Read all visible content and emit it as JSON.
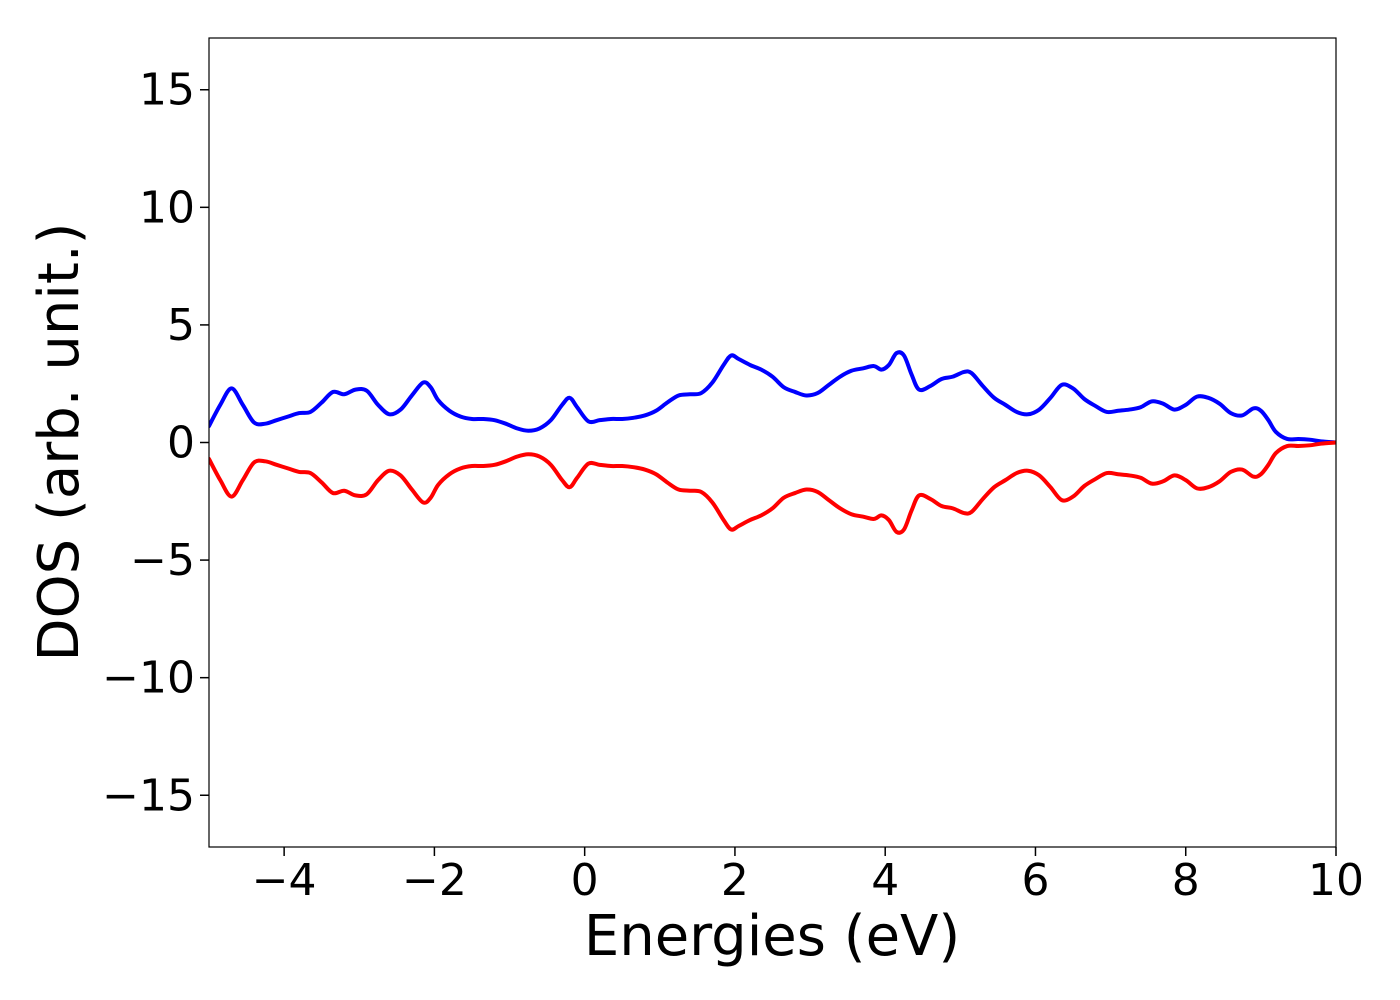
{
  "chart_data": {
    "type": "line",
    "xlabel": "Energies (eV)",
    "ylabel": "DOS (arb. unit.)",
    "xlim": [
      -5,
      10
    ],
    "ylim": [
      -17.2,
      17.2
    ],
    "x_ticks": [
      -4,
      -2,
      0,
      2,
      4,
      6,
      8,
      10
    ],
    "y_ticks": [
      -15,
      -10,
      -5,
      0,
      5,
      10,
      15
    ],
    "x_tick_labels": [
      "−4",
      "−2",
      "0",
      "2",
      "4",
      "6",
      "8",
      "10"
    ],
    "y_tick_labels": [
      "−15",
      "−10",
      "−5",
      "0",
      "5",
      "10",
      "15"
    ],
    "grid": false,
    "legend": "none",
    "series": [
      {
        "color": "#0000ff",
        "x": [
          -5.0,
          -4.85,
          -4.7,
          -4.55,
          -4.4,
          -4.25,
          -4.1,
          -3.95,
          -3.8,
          -3.65,
          -3.5,
          -3.35,
          -3.2,
          -3.05,
          -2.9,
          -2.75,
          -2.6,
          -2.45,
          -2.3,
          -2.15,
          -2.05,
          -1.95,
          -1.8,
          -1.65,
          -1.5,
          -1.35,
          -1.2,
          -1.05,
          -0.9,
          -0.75,
          -0.6,
          -0.45,
          -0.3,
          -0.2,
          -0.1,
          0.05,
          0.2,
          0.35,
          0.5,
          0.65,
          0.8,
          0.95,
          1.1,
          1.25,
          1.4,
          1.55,
          1.7,
          1.85,
          1.95,
          2.05,
          2.2,
          2.35,
          2.5,
          2.65,
          2.8,
          2.95,
          3.1,
          3.25,
          3.4,
          3.55,
          3.7,
          3.85,
          3.95,
          4.05,
          4.15,
          4.25,
          4.35,
          4.45,
          4.6,
          4.75,
          4.9,
          5.05,
          5.15,
          5.3,
          5.45,
          5.6,
          5.75,
          5.9,
          6.05,
          6.2,
          6.35,
          6.5,
          6.65,
          6.8,
          6.95,
          7.1,
          7.25,
          7.4,
          7.55,
          7.7,
          7.85,
          8.0,
          8.15,
          8.3,
          8.45,
          8.6,
          8.75,
          8.9,
          9.0,
          9.1,
          9.2,
          9.35,
          9.5,
          9.65,
          9.8,
          10.0
        ],
        "values": [
          0.7,
          1.6,
          2.3,
          1.6,
          0.85,
          0.8,
          0.95,
          1.1,
          1.25,
          1.3,
          1.7,
          2.15,
          2.05,
          2.25,
          2.2,
          1.6,
          1.2,
          1.4,
          2.0,
          2.55,
          2.35,
          1.8,
          1.35,
          1.1,
          1.0,
          1.0,
          0.95,
          0.8,
          0.6,
          0.5,
          0.6,
          0.95,
          1.6,
          1.9,
          1.5,
          0.9,
          0.95,
          1.0,
          1.0,
          1.05,
          1.15,
          1.35,
          1.7,
          2.0,
          2.05,
          2.1,
          2.55,
          3.3,
          3.7,
          3.55,
          3.3,
          3.1,
          2.8,
          2.35,
          2.15,
          2.0,
          2.1,
          2.45,
          2.8,
          3.05,
          3.15,
          3.25,
          3.1,
          3.3,
          3.8,
          3.7,
          2.9,
          2.25,
          2.4,
          2.7,
          2.8,
          3.0,
          2.95,
          2.4,
          1.9,
          1.6,
          1.3,
          1.2,
          1.4,
          1.9,
          2.45,
          2.3,
          1.85,
          1.55,
          1.3,
          1.35,
          1.4,
          1.5,
          1.75,
          1.65,
          1.4,
          1.6,
          1.95,
          1.9,
          1.65,
          1.25,
          1.15,
          1.45,
          1.35,
          0.95,
          0.45,
          0.15,
          0.15,
          0.12,
          0.05,
          0.0
        ]
      },
      {
        "color": "#ff0000",
        "x": [
          -5.0,
          -4.85,
          -4.7,
          -4.55,
          -4.4,
          -4.25,
          -4.1,
          -3.95,
          -3.8,
          -3.65,
          -3.5,
          -3.35,
          -3.2,
          -3.05,
          -2.9,
          -2.75,
          -2.6,
          -2.45,
          -2.3,
          -2.15,
          -2.05,
          -1.95,
          -1.8,
          -1.65,
          -1.5,
          -1.35,
          -1.2,
          -1.05,
          -0.9,
          -0.75,
          -0.6,
          -0.45,
          -0.3,
          -0.2,
          -0.1,
          0.05,
          0.2,
          0.35,
          0.5,
          0.65,
          0.8,
          0.95,
          1.1,
          1.25,
          1.4,
          1.55,
          1.7,
          1.85,
          1.95,
          2.05,
          2.2,
          2.35,
          2.5,
          2.65,
          2.8,
          2.95,
          3.1,
          3.25,
          3.4,
          3.55,
          3.7,
          3.85,
          3.95,
          4.05,
          4.15,
          4.25,
          4.35,
          4.45,
          4.6,
          4.75,
          4.9,
          5.05,
          5.15,
          5.3,
          5.45,
          5.6,
          5.75,
          5.9,
          6.05,
          6.2,
          6.35,
          6.5,
          6.65,
          6.8,
          6.95,
          7.1,
          7.25,
          7.4,
          7.55,
          7.7,
          7.85,
          8.0,
          8.15,
          8.3,
          8.45,
          8.6,
          8.75,
          8.9,
          9.0,
          9.1,
          9.2,
          9.35,
          9.5,
          9.65,
          9.8,
          10.0
        ],
        "values": [
          -0.7,
          -1.6,
          -2.3,
          -1.6,
          -0.85,
          -0.8,
          -0.95,
          -1.1,
          -1.25,
          -1.3,
          -1.7,
          -2.15,
          -2.05,
          -2.25,
          -2.2,
          -1.6,
          -1.2,
          -1.4,
          -2.0,
          -2.55,
          -2.35,
          -1.8,
          -1.35,
          -1.1,
          -1.0,
          -1.0,
          -0.95,
          -0.8,
          -0.6,
          -0.5,
          -0.6,
          -0.95,
          -1.6,
          -1.9,
          -1.5,
          -0.9,
          -0.95,
          -1.0,
          -1.0,
          -1.05,
          -1.15,
          -1.35,
          -1.7,
          -2.0,
          -2.05,
          -2.1,
          -2.55,
          -3.3,
          -3.7,
          -3.55,
          -3.3,
          -3.1,
          -2.8,
          -2.35,
          -2.15,
          -2.0,
          -2.1,
          -2.45,
          -2.8,
          -3.05,
          -3.15,
          -3.25,
          -3.1,
          -3.3,
          -3.8,
          -3.7,
          -2.9,
          -2.25,
          -2.4,
          -2.7,
          -2.8,
          -3.0,
          -2.95,
          -2.4,
          -1.9,
          -1.6,
          -1.3,
          -1.2,
          -1.4,
          -1.9,
          -2.45,
          -2.3,
          -1.85,
          -1.55,
          -1.3,
          -1.35,
          -1.4,
          -1.5,
          -1.75,
          -1.65,
          -1.4,
          -1.6,
          -1.95,
          -1.9,
          -1.65,
          -1.25,
          -1.15,
          -1.45,
          -1.35,
          -0.95,
          -0.45,
          -0.15,
          -0.15,
          -0.12,
          -0.05,
          0.0
        ]
      }
    ]
  }
}
